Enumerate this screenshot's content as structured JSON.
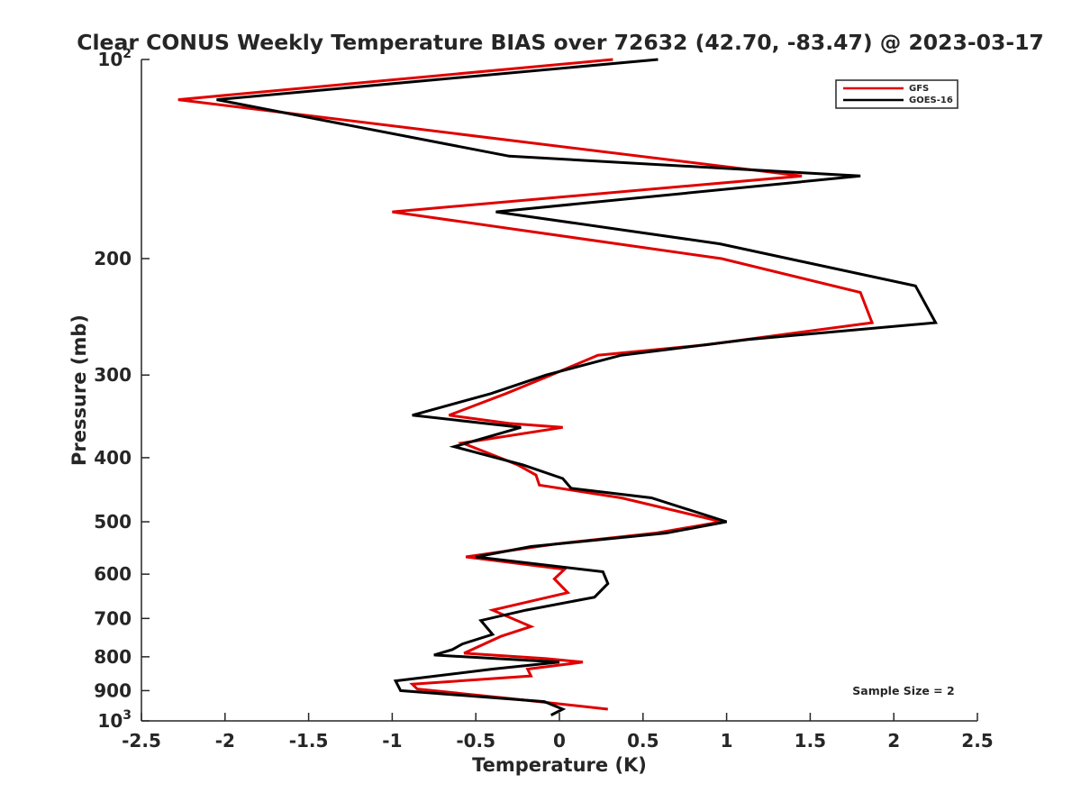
{
  "chart_data": {
    "type": "line",
    "title": "Clear CONUS Weekly Temperature BIAS over 72632 (42.70, -83.47) @ 2023-03-17",
    "xlabel": "Temperature (K)",
    "ylabel": "Pressure (mb)",
    "xlim": [
      -2.5,
      2.5
    ],
    "ylim": [
      100,
      1000
    ],
    "y_scale": "log",
    "y_reversed": true,
    "grid": false,
    "legend_position": "top-right",
    "x_ticks": [
      "-2.5",
      "-2",
      "-1.5",
      "-1",
      "-0.5",
      "0",
      "0.5",
      "1",
      "1.5",
      "2",
      "2.5"
    ],
    "y_ticks": [
      {
        "value": 100,
        "base": "10",
        "exp": "2"
      },
      {
        "value": 200,
        "label": "200"
      },
      {
        "value": 300,
        "label": "300"
      },
      {
        "value": 400,
        "label": "400"
      },
      {
        "value": 500,
        "label": "500"
      },
      {
        "value": 600,
        "label": "600"
      },
      {
        "value": 700,
        "label": "700"
      },
      {
        "value": 800,
        "label": "800"
      },
      {
        "value": 900,
        "label": "900"
      },
      {
        "value": 1000,
        "base": "10",
        "exp": "3"
      }
    ],
    "annotation": "Sample Size = 2",
    "series": [
      {
        "name": "GFS",
        "color": "#e00000",
        "points": [
          [
            0.32,
            100
          ],
          [
            -2.28,
            115
          ],
          [
            1.45,
            150
          ],
          [
            -1.0,
            170
          ],
          [
            0.97,
            200
          ],
          [
            1.8,
            225
          ],
          [
            1.87,
            250
          ],
          [
            0.88,
            270
          ],
          [
            0.23,
            280
          ],
          [
            -0.05,
            300
          ],
          [
            -0.32,
            320
          ],
          [
            -0.66,
            345
          ],
          [
            -0.3,
            355
          ],
          [
            0.02,
            360
          ],
          [
            -0.58,
            380
          ],
          [
            -0.25,
            410
          ],
          [
            -0.14,
            425
          ],
          [
            -0.12,
            440
          ],
          [
            0.37,
            460
          ],
          [
            0.97,
            500
          ],
          [
            0.58,
            520
          ],
          [
            -0.02,
            540
          ],
          [
            -0.56,
            565
          ],
          [
            0.03,
            590
          ],
          [
            -0.03,
            610
          ],
          [
            0.05,
            640
          ],
          [
            -0.4,
            680
          ],
          [
            -0.17,
            720
          ],
          [
            -0.35,
            745
          ],
          [
            -0.57,
            790
          ],
          [
            -0.08,
            805
          ],
          [
            0.14,
            815
          ],
          [
            -0.19,
            835
          ],
          [
            -0.17,
            855
          ],
          [
            -0.88,
            880
          ],
          [
            -0.85,
            895
          ],
          [
            -0.3,
            925
          ],
          [
            0.29,
            960
          ]
        ]
      },
      {
        "name": "GOES-16",
        "color": "#000000",
        "points": [
          [
            0.59,
            100
          ],
          [
            -2.05,
            115
          ],
          [
            -0.3,
            140
          ],
          [
            1.8,
            150
          ],
          [
            -0.38,
            170
          ],
          [
            0.96,
            190
          ],
          [
            1.37,
            200
          ],
          [
            2.13,
            220
          ],
          [
            2.25,
            250
          ],
          [
            1.13,
            265
          ],
          [
            0.37,
            280
          ],
          [
            -0.08,
            300
          ],
          [
            -0.41,
            320
          ],
          [
            -0.88,
            345
          ],
          [
            -0.23,
            360
          ],
          [
            -0.63,
            385
          ],
          [
            -0.22,
            410
          ],
          [
            0.02,
            430
          ],
          [
            0.07,
            445
          ],
          [
            0.55,
            460
          ],
          [
            1.0,
            500
          ],
          [
            0.64,
            520
          ],
          [
            -0.17,
            545
          ],
          [
            -0.5,
            565
          ],
          [
            0.26,
            595
          ],
          [
            0.29,
            620
          ],
          [
            0.21,
            650
          ],
          [
            -0.2,
            680
          ],
          [
            -0.47,
            705
          ],
          [
            -0.4,
            740
          ],
          [
            -0.58,
            765
          ],
          [
            -0.64,
            780
          ],
          [
            -0.75,
            795
          ],
          [
            0.0,
            815
          ],
          [
            -0.4,
            835
          ],
          [
            -0.98,
            870
          ],
          [
            -0.95,
            900
          ],
          [
            -0.09,
            935
          ],
          [
            0.02,
            960
          ],
          [
            -0.05,
            980
          ]
        ]
      }
    ]
  }
}
